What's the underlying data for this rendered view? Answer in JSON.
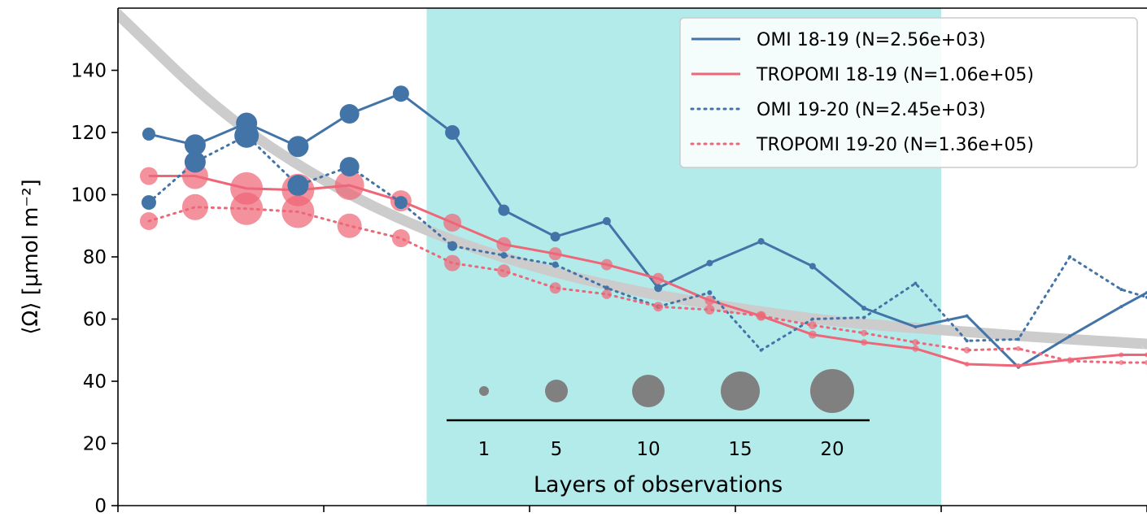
{
  "chart_data": {
    "type": "line",
    "title": "",
    "xlabel": "",
    "ylabel": "⟨Ω⟩ [μmol m⁻²]",
    "ylim": [
      0,
      160
    ],
    "xlim": [
      0,
      20
    ],
    "yticks": [
      "0",
      "20",
      "40",
      "60",
      "80",
      "100",
      "120",
      "140"
    ],
    "xticks": [
      0,
      4,
      8,
      12,
      16,
      20
    ],
    "highlight_band": {
      "x_start": 6,
      "x_end": 16,
      "color": "#b2ebea"
    },
    "fit_curve": {
      "color": "#cccccc",
      "points": [
        [
          0,
          158
        ],
        [
          2,
          126
        ],
        [
          4,
          104
        ],
        [
          6,
          88
        ],
        [
          8,
          77
        ],
        [
          10,
          69
        ],
        [
          12,
          63.5
        ],
        [
          14,
          59
        ],
        [
          16,
          56.5
        ],
        [
          18,
          54
        ],
        [
          20,
          52
        ]
      ]
    },
    "series": [
      {
        "name": "OMI 18-19 (N=2.56e+03)",
        "color": "#4374a8",
        "style": "solid",
        "x": [
          0.6,
          1.5,
          2.5,
          3.5,
          4.5,
          5.5,
          6.5,
          7.5,
          8.5,
          9.5,
          10.5,
          11.5,
          12.5,
          13.5,
          14.5,
          15.5,
          16.5,
          17.5,
          18.5,
          19.5,
          20
        ],
        "values": [
          119.5,
          116,
          123,
          115.5,
          126,
          132.5,
          120,
          95,
          86.5,
          91.5,
          70,
          78,
          85,
          77,
          63.5,
          57.5,
          61,
          44.5,
          54.5,
          64,
          68.5
        ],
        "sizes": [
          8,
          13,
          13,
          13,
          12,
          10,
          9,
          7,
          6,
          5,
          5,
          4,
          4,
          4,
          3,
          2,
          2,
          2,
          2,
          2,
          2
        ]
      },
      {
        "name": "TROPOMI 18-19 (N=1.06e+05)",
        "color": "#ee6677",
        "style": "solid",
        "x": [
          0.6,
          1.5,
          2.5,
          3.5,
          4.5,
          5.5,
          6.5,
          7.5,
          8.5,
          9.5,
          10.5,
          11.5,
          12.5,
          13.5,
          14.5,
          15.5,
          16.5,
          17.5,
          18.5,
          19.5,
          20
        ],
        "values": [
          106,
          106,
          102,
          101.5,
          103,
          98,
          91,
          84,
          81,
          77.5,
          73,
          66,
          61,
          55,
          52.5,
          50.5,
          45.5,
          45,
          47,
          48.5,
          48.5
        ],
        "sizes": [
          11,
          16,
          20,
          20,
          18,
          13,
          11,
          9,
          8,
          7,
          7,
          6,
          6,
          5,
          4,
          4,
          3,
          3,
          3,
          3,
          3
        ]
      },
      {
        "name": "OMI 19-20 (N=2.45e+03)",
        "color": "#4374a8",
        "style": "dotted",
        "x": [
          0.6,
          1.5,
          2.5,
          3.5,
          4.5,
          5.5,
          6.5,
          7.5,
          8.5,
          9.5,
          10.5,
          11.5,
          12.5,
          13.5,
          14.5,
          15.5,
          16.5,
          17.5,
          18.5,
          19.5,
          20
        ],
        "values": [
          97.5,
          110.5,
          119,
          103,
          109,
          97.5,
          83.5,
          80.5,
          77.5,
          70,
          64,
          68.5,
          50,
          60,
          60.5,
          71.5,
          53,
          53.5,
          80,
          69.5,
          67
        ],
        "sizes": [
          9,
          13,
          15,
          13,
          12,
          8,
          6,
          4,
          4,
          3,
          3,
          3,
          2,
          2,
          2,
          2,
          2,
          2,
          2,
          2,
          2
        ]
      },
      {
        "name": "TROPOMI 19-20 (N=1.36e+05)",
        "color": "#ee6677",
        "style": "dotted",
        "x": [
          0.6,
          1.5,
          2.5,
          3.5,
          4.5,
          5.5,
          6.5,
          7.5,
          8.5,
          9.5,
          10.5,
          11.5,
          12.5,
          13.5,
          14.5,
          15.5,
          16.5,
          17.5,
          18.5,
          19.5,
          20
        ],
        "values": [
          91.5,
          96,
          95.5,
          94.5,
          90,
          86,
          78,
          75.5,
          70,
          68,
          64,
          63,
          61,
          58,
          55.5,
          52.5,
          50,
          50.5,
          46.5,
          46,
          46
        ],
        "sizes": [
          11,
          16,
          20,
          20,
          15,
          11,
          10,
          8,
          7,
          6,
          6,
          6,
          5,
          5,
          4,
          4,
          4,
          3,
          3,
          3,
          3
        ]
      }
    ],
    "size_legend": {
      "title": "Layers of observations",
      "labels": [
        "1",
        "5",
        "10",
        "15",
        "20"
      ],
      "radii": [
        6,
        14,
        20,
        24,
        27
      ],
      "color": "#808080"
    },
    "legend_position": "top-right"
  }
}
